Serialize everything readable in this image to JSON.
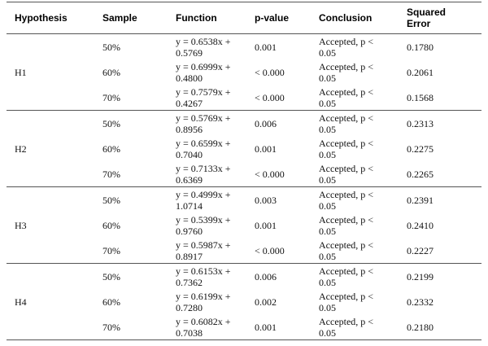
{
  "table": {
    "columns": [
      "Hypothesis",
      "Sample",
      "Function",
      "p-value",
      "Conclusion",
      "Squared Error"
    ],
    "groups": [
      {
        "hypothesis": "H1",
        "rows": [
          [
            "50%",
            "y = 0.6538x + 0.5769",
            "0.001",
            "Accepted, p < 0.05",
            "0.1780"
          ],
          [
            "60%",
            "y = 0.6999x + 0.4800",
            "< 0.000",
            "Accepted, p < 0.05",
            "0.2061"
          ],
          [
            "70%",
            "y = 0.7579x + 0.4267",
            "< 0.000",
            "Accepted, p < 0.05",
            "0.1568"
          ]
        ]
      },
      {
        "hypothesis": "H2",
        "rows": [
          [
            "50%",
            "y = 0.5769x + 0.8956",
            "0.006",
            "Accepted, p < 0.05",
            "0.2313"
          ],
          [
            "60%",
            "y = 0.6599x + 0.7040",
            "0.001",
            "Accepted, p < 0.05",
            "0.2275"
          ],
          [
            "70%",
            "y = 0.7133x + 0.6369",
            "< 0.000",
            "Accepted, p < 0.05",
            "0.2265"
          ]
        ]
      },
      {
        "hypothesis": "H3",
        "rows": [
          [
            "50%",
            "y = 0.4999x + 1.0714",
            "0.003",
            "Accepted, p < 0.05",
            "0.2391"
          ],
          [
            "60%",
            "y = 0.5399x + 0.9760",
            "0.001",
            "Accepted, p < 0.05",
            "0.2410"
          ],
          [
            "70%",
            "y = 0.5987x + 0.8917",
            "< 0.000",
            "Accepted, p < 0.05",
            "0.2227"
          ]
        ]
      },
      {
        "hypothesis": "H4",
        "rows": [
          [
            "50%",
            "y = 0.6153x + 0.7362",
            "0.006",
            "Accepted, p < 0.05",
            "0.2199"
          ],
          [
            "60%",
            "y = 0.6199x + 0.7280",
            "0.002",
            "Accepted, p < 0.05",
            "0.2332"
          ],
          [
            "70%",
            "y = 0.6082x + 0.7038",
            "0.001",
            "Accepted, p < 0.05",
            "0.2180"
          ]
        ]
      }
    ]
  }
}
